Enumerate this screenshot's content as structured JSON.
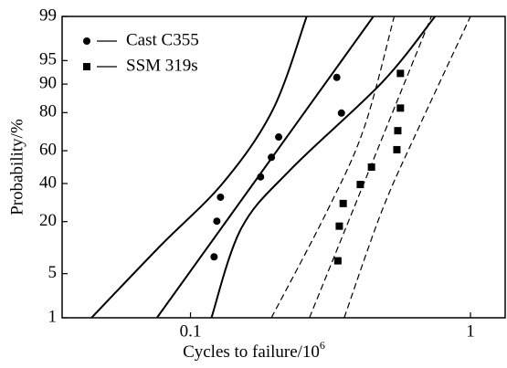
{
  "chart_data": {
    "type": "probability",
    "xlabel": "Cycles to failure/10",
    "xlabel_exponent": "6",
    "ylabel": "Probability/%",
    "xscale": "log",
    "yscale": "normal-probability",
    "xlim": [
      0.0348,
      1.33
    ],
    "xticks": [
      0.1,
      1
    ],
    "ylim": [
      1,
      99
    ],
    "yticks": [
      1,
      5,
      20,
      40,
      60,
      80,
      90,
      95,
      99
    ],
    "legend": "upper left",
    "series": [
      {
        "name": "Cast C355",
        "marker": "circle",
        "color": "#000000",
        "dash": false,
        "x": [
          0.1214,
          0.1242,
          0.128,
          0.178,
          0.1945,
          0.2065,
          0.346,
          0.333
        ],
        "values": [
          8.3,
          20.2,
          32.1,
          44.0,
          56.0,
          67.9,
          79.8,
          91.7
        ],
        "fits": [
          {
            "x": [
              0.0759,
              0.45
            ],
            "values": [
              1,
              99
            ]
          },
          {
            "x": [
              0.0443,
              0.0776,
              0.131,
              0.197,
              0.26
            ],
            "values": [
              1,
              11,
              40.6,
              81.3,
              99
            ]
          },
          {
            "x": [
              0.1188,
              0.152,
              0.229,
              0.484,
              0.747
            ],
            "values": [
              1,
              17.3,
              48.9,
              90.5,
              99
            ]
          }
        ]
      },
      {
        "name": "SSM 319s",
        "marker": "square",
        "color": "#000000",
        "dash": true,
        "x": [
          0.336,
          0.34,
          0.351,
          0.404,
          0.443,
          0.546,
          0.55,
          0.562,
          0.562
        ],
        "values": [
          7.4,
          18.1,
          28.7,
          39.4,
          50.0,
          60.6,
          71.3,
          81.9,
          92.6
        ],
        "fits": [
          {
            "x": [
              0.266,
              0.725
            ],
            "values": [
              1,
              99
            ]
          },
          {
            "x": [
              0.1945,
              0.309,
              0.417,
              0.534
            ],
            "values": [
              1,
              25.4,
              72.8,
              99
            ]
          },
          {
            "x": [
              0.354,
              0.484,
              0.653,
              1.0
            ],
            "values": [
              1,
              25.4,
              72.8,
              99
            ]
          }
        ]
      }
    ]
  }
}
